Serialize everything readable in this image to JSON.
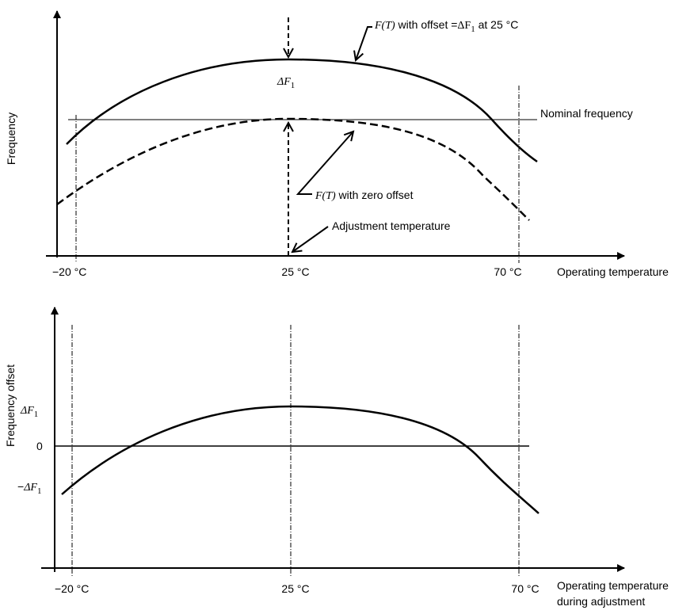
{
  "top_panel": {
    "y_axis_label": "Frequency",
    "x_axis_label": "Operating temperature",
    "tick_left": "−20 °C",
    "tick_mid": "25 °C",
    "tick_right": "70 °C",
    "nominal_label": "Nominal frequency",
    "offset_curve_label": {
      "func": "F(T)",
      "text": " with offset =",
      "delta": "ΔF",
      "sub": "1",
      "suffix": " at 25 °C"
    },
    "zero_curve_label": {
      "func": "F(T)",
      "text": " with zero offset"
    },
    "delta_label": {
      "delta": "ΔF",
      "sub": "1"
    },
    "adjustment_label": "Adjustment temperature"
  },
  "bottom_panel": {
    "y_axis_label": "Frequency offset",
    "x_axis_label_line1": "Operating temperature",
    "x_axis_label_line2": "during adjustment",
    "tick_left": "−20 °C",
    "tick_mid": "25 °C",
    "tick_right": "70 °C",
    "y_tick_pos": {
      "delta": "ΔF",
      "sub": "1"
    },
    "y_tick_zero": "0",
    "y_tick_neg": {
      "minus": "−",
      "delta": "ΔF",
      "sub": "1"
    }
  }
}
